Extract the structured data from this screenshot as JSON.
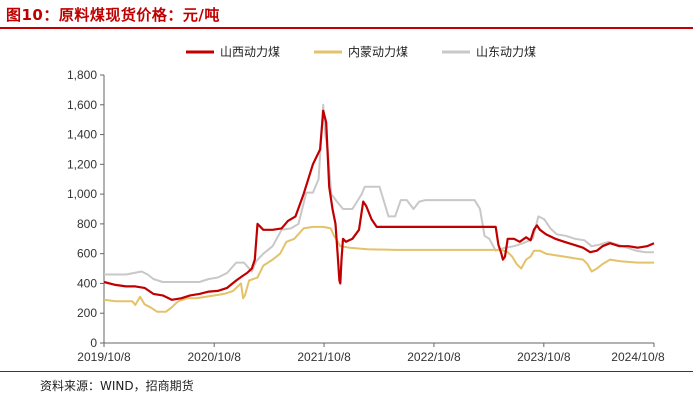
{
  "title": "图10：原料煤现货价格：元/吨",
  "source": "资料来源：WIND，招商期货",
  "colors": {
    "accent": "#c00000",
    "shanxi": "#c00000",
    "neimeng": "#e3c26a",
    "shandong": "#c8c8c8",
    "axis": "#666666"
  },
  "chart_data": {
    "type": "line",
    "title": "原料煤现货价格：元/吨",
    "xlabel": "",
    "ylabel": "",
    "ylim": [
      0,
      1800
    ],
    "yticks": [
      0,
      200,
      400,
      600,
      800,
      1000,
      1200,
      1400,
      1600,
      1800
    ],
    "ytick_labels": [
      "0",
      "200",
      "400",
      "600",
      "800",
      "1,000",
      "1,200",
      "1,400",
      "1,600",
      "1,800"
    ],
    "xlim": [
      "2019-10-08",
      "2024-10-08"
    ],
    "xtick_labels": [
      "2019/10/8",
      "2020/10/8",
      "2021/10/8",
      "2022/10/8",
      "2023/10/8",
      "2024/10/8"
    ],
    "xtick_dates": [
      "2019-10-08",
      "2020-10-08",
      "2021-10-08",
      "2022-10-08",
      "2023-10-08",
      "2024-10-08"
    ],
    "grid": false,
    "legend": "top",
    "series": [
      {
        "name": "山西动力煤",
        "points": [
          [
            "2019-10-08",
            410
          ],
          [
            "2019-11-15",
            390
          ],
          [
            "2019-12-20",
            380
          ],
          [
            "2020-01-20",
            380
          ],
          [
            "2020-02-20",
            370
          ],
          [
            "2020-03-20",
            330
          ],
          [
            "2020-04-20",
            320
          ],
          [
            "2020-05-20",
            290
          ],
          [
            "2020-06-20",
            300
          ],
          [
            "2020-07-20",
            320
          ],
          [
            "2020-08-20",
            330
          ],
          [
            "2020-09-20",
            345
          ],
          [
            "2020-10-20",
            350
          ],
          [
            "2020-11-20",
            370
          ],
          [
            "2020-12-20",
            420
          ],
          [
            "2021-01-10",
            450
          ],
          [
            "2021-01-25",
            470
          ],
          [
            "2021-02-10",
            500
          ],
          [
            "2021-02-20",
            560
          ],
          [
            "2021-03-01",
            800
          ],
          [
            "2021-03-20",
            760
          ],
          [
            "2021-04-20",
            760
          ],
          [
            "2021-05-20",
            770
          ],
          [
            "2021-06-10",
            820
          ],
          [
            "2021-07-05",
            850
          ],
          [
            "2021-08-01",
            1000
          ],
          [
            "2021-09-01",
            1200
          ],
          [
            "2021-09-25",
            1300
          ],
          [
            "2021-10-05",
            1560
          ],
          [
            "2021-10-15",
            1480
          ],
          [
            "2021-10-25",
            1050
          ],
          [
            "2021-11-05",
            900
          ],
          [
            "2021-11-15",
            800
          ],
          [
            "2021-11-22",
            600
          ],
          [
            "2021-11-28",
            420
          ],
          [
            "2021-12-01",
            400
          ],
          [
            "2021-12-05",
            560
          ],
          [
            "2021-12-10",
            700
          ],
          [
            "2021-12-20",
            680
          ],
          [
            "2022-01-10",
            700
          ],
          [
            "2022-02-01",
            760
          ],
          [
            "2022-02-15",
            950
          ],
          [
            "2022-02-25",
            920
          ],
          [
            "2022-03-15",
            830
          ],
          [
            "2022-04-01",
            780
          ],
          [
            "2022-06-01",
            780
          ],
          [
            "2022-09-01",
            780
          ],
          [
            "2022-12-01",
            780
          ],
          [
            "2023-03-01",
            780
          ],
          [
            "2023-05-01",
            780
          ],
          [
            "2023-05-10",
            660
          ],
          [
            "2023-05-20",
            600
          ],
          [
            "2023-05-25",
            560
          ],
          [
            "2023-06-01",
            580
          ],
          [
            "2023-06-10",
            700
          ],
          [
            "2023-07-01",
            700
          ],
          [
            "2023-07-20",
            680
          ],
          [
            "2023-08-10",
            710
          ],
          [
            "2023-08-25",
            690
          ],
          [
            "2023-09-05",
            760
          ],
          [
            "2023-09-15",
            790
          ],
          [
            "2023-09-25",
            760
          ],
          [
            "2023-10-15",
            730
          ],
          [
            "2023-11-15",
            700
          ],
          [
            "2023-12-15",
            680
          ],
          [
            "2024-01-15",
            660
          ],
          [
            "2024-02-15",
            640
          ],
          [
            "2024-03-10",
            610
          ],
          [
            "2024-04-01",
            620
          ],
          [
            "2024-04-20",
            650
          ],
          [
            "2024-05-15",
            670
          ],
          [
            "2024-06-15",
            650
          ],
          [
            "2024-07-15",
            650
          ],
          [
            "2024-08-15",
            640
          ],
          [
            "2024-09-15",
            650
          ],
          [
            "2024-10-08",
            670
          ]
        ]
      },
      {
        "name": "内蒙动力煤",
        "points": [
          [
            "2019-10-08",
            290
          ],
          [
            "2019-11-15",
            280
          ],
          [
            "2019-12-20",
            280
          ],
          [
            "2020-01-10",
            280
          ],
          [
            "2020-01-20",
            255
          ],
          [
            "2020-02-05",
            310
          ],
          [
            "2020-02-20",
            260
          ],
          [
            "2020-03-10",
            240
          ],
          [
            "2020-04-01",
            210
          ],
          [
            "2020-05-01",
            210
          ],
          [
            "2020-05-20",
            240
          ],
          [
            "2020-06-10",
            280
          ],
          [
            "2020-07-10",
            300
          ],
          [
            "2020-08-10",
            300
          ],
          [
            "2020-09-10",
            310
          ],
          [
            "2020-10-10",
            320
          ],
          [
            "2020-11-10",
            330
          ],
          [
            "2020-12-10",
            350
          ],
          [
            "2021-01-05",
            400
          ],
          [
            "2021-01-12",
            300
          ],
          [
            "2021-01-18",
            320
          ],
          [
            "2021-02-01",
            420
          ],
          [
            "2021-03-01",
            440
          ],
          [
            "2021-03-20",
            520
          ],
          [
            "2021-04-20",
            560
          ],
          [
            "2021-05-15",
            600
          ],
          [
            "2021-06-05",
            680
          ],
          [
            "2021-07-01",
            700
          ],
          [
            "2021-08-01",
            770
          ],
          [
            "2021-09-01",
            780
          ],
          [
            "2021-10-05",
            780
          ],
          [
            "2021-10-30",
            770
          ],
          [
            "2021-11-10",
            720
          ],
          [
            "2021-11-20",
            690
          ],
          [
            "2021-12-01",
            650
          ],
          [
            "2022-01-01",
            640
          ],
          [
            "2022-03-01",
            630
          ],
          [
            "2022-06-01",
            625
          ],
          [
            "2022-09-01",
            625
          ],
          [
            "2022-12-01",
            625
          ],
          [
            "2023-03-01",
            625
          ],
          [
            "2023-05-20",
            625
          ],
          [
            "2023-06-10",
            610
          ],
          [
            "2023-06-25",
            580
          ],
          [
            "2023-07-10",
            530
          ],
          [
            "2023-07-25",
            500
          ],
          [
            "2023-08-10",
            560
          ],
          [
            "2023-08-25",
            580
          ],
          [
            "2023-09-05",
            620
          ],
          [
            "2023-09-25",
            620
          ],
          [
            "2023-10-15",
            600
          ],
          [
            "2023-11-15",
            590
          ],
          [
            "2023-12-15",
            580
          ],
          [
            "2024-01-15",
            570
          ],
          [
            "2024-02-15",
            560
          ],
          [
            "2024-03-01",
            530
          ],
          [
            "2024-03-15",
            480
          ],
          [
            "2024-04-01",
            500
          ],
          [
            "2024-04-20",
            530
          ],
          [
            "2024-05-15",
            560
          ],
          [
            "2024-06-15",
            550
          ],
          [
            "2024-07-15",
            545
          ],
          [
            "2024-08-15",
            540
          ],
          [
            "2024-09-15",
            540
          ],
          [
            "2024-10-08",
            540
          ]
        ]
      },
      {
        "name": "山东动力煤",
        "points": [
          [
            "2019-10-08",
            460
          ],
          [
            "2019-11-15",
            460
          ],
          [
            "2019-12-20",
            460
          ],
          [
            "2020-01-15",
            470
          ],
          [
            "2020-02-10",
            480
          ],
          [
            "2020-03-01",
            460
          ],
          [
            "2020-03-20",
            430
          ],
          [
            "2020-04-20",
            410
          ],
          [
            "2020-05-20",
            410
          ],
          [
            "2020-06-20",
            410
          ],
          [
            "2020-07-20",
            410
          ],
          [
            "2020-08-20",
            410
          ],
          [
            "2020-09-20",
            430
          ],
          [
            "2020-10-20",
            440
          ],
          [
            "2020-11-20",
            470
          ],
          [
            "2020-12-20",
            540
          ],
          [
            "2021-01-15",
            540
          ],
          [
            "2021-02-10",
            480
          ],
          [
            "2021-02-25",
            550
          ],
          [
            "2021-03-20",
            600
          ],
          [
            "2021-04-20",
            650
          ],
          [
            "2021-05-20",
            760
          ],
          [
            "2021-06-20",
            770
          ],
          [
            "2021-07-15",
            800
          ],
          [
            "2021-08-10",
            1010
          ],
          [
            "2021-09-01",
            1010
          ],
          [
            "2021-09-20",
            1100
          ],
          [
            "2021-10-05",
            1600
          ],
          [
            "2021-10-12",
            1400
          ],
          [
            "2021-10-20",
            1300
          ],
          [
            "2021-11-01",
            1000
          ],
          [
            "2021-11-20",
            950
          ],
          [
            "2021-12-10",
            900
          ],
          [
            "2022-01-10",
            900
          ],
          [
            "2022-02-10",
            1000
          ],
          [
            "2022-02-20",
            1050
          ],
          [
            "2022-04-10",
            1050
          ],
          [
            "2022-05-10",
            850
          ],
          [
            "2022-06-01",
            850
          ],
          [
            "2022-06-20",
            960
          ],
          [
            "2022-07-10",
            960
          ],
          [
            "2022-08-01",
            900
          ],
          [
            "2022-08-20",
            950
          ],
          [
            "2022-09-10",
            960
          ],
          [
            "2022-12-01",
            960
          ],
          [
            "2023-02-20",
            960
          ],
          [
            "2023-03-10",
            900
          ],
          [
            "2023-03-25",
            720
          ],
          [
            "2023-04-10",
            700
          ],
          [
            "2023-05-01",
            620
          ],
          [
            "2023-06-01",
            640
          ],
          [
            "2023-07-01",
            650
          ],
          [
            "2023-08-01",
            670
          ],
          [
            "2023-09-01",
            700
          ],
          [
            "2023-09-20",
            850
          ],
          [
            "2023-10-10",
            830
          ],
          [
            "2023-10-30",
            770
          ],
          [
            "2023-11-20",
            730
          ],
          [
            "2023-12-20",
            720
          ],
          [
            "2024-01-20",
            700
          ],
          [
            "2024-02-20",
            690
          ],
          [
            "2024-03-15",
            650
          ],
          [
            "2024-04-10",
            660
          ],
          [
            "2024-05-10",
            680
          ],
          [
            "2024-06-10",
            660
          ],
          [
            "2024-07-10",
            640
          ],
          [
            "2024-08-10",
            620
          ],
          [
            "2024-09-10",
            610
          ],
          [
            "2024-10-08",
            610
          ]
        ]
      }
    ]
  }
}
